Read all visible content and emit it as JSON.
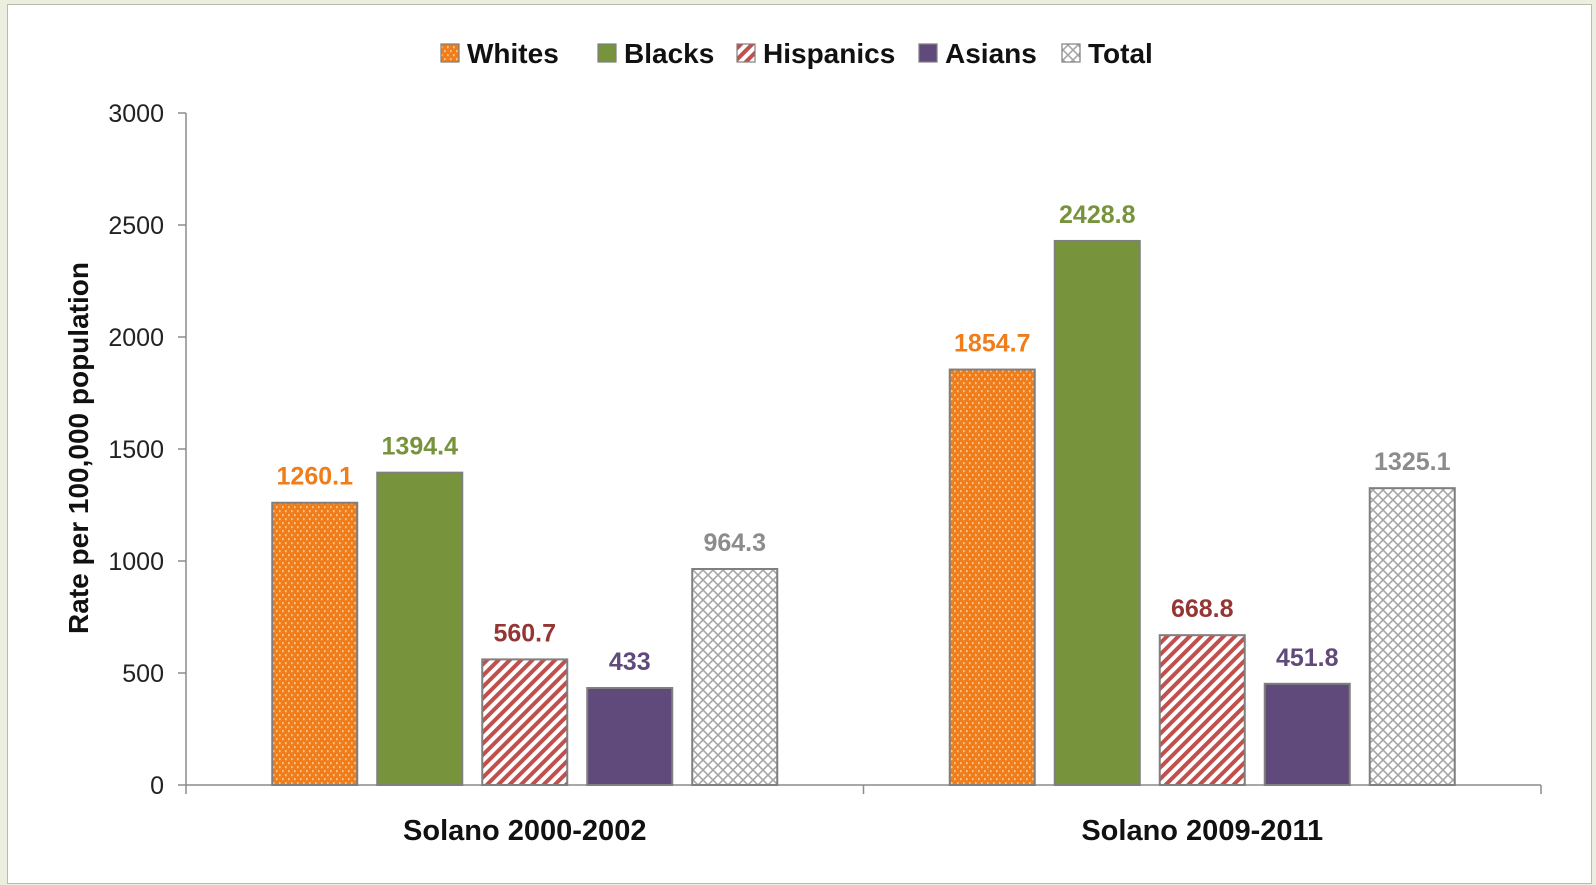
{
  "chart_data": {
    "type": "bar",
    "categories": [
      "Solano 2000-2002",
      "Solano 2009-2011"
    ],
    "series": [
      {
        "name": "Whites",
        "values": [
          1260.1,
          1854.7
        ],
        "color": "#f07d1a",
        "label_color": "#f07d1a",
        "pattern": "dotted-orange"
      },
      {
        "name": "Blacks",
        "values": [
          1394.4,
          2428.8
        ],
        "color": "#77933c",
        "label_color": "#77933c",
        "pattern": "solid"
      },
      {
        "name": "Hispanics",
        "values": [
          560.7,
          668.8
        ],
        "color": "#c0504d",
        "label_color": "#943634",
        "pattern": "diagonal-stripes"
      },
      {
        "name": "Asians",
        "values": [
          433,
          451.8
        ],
        "color": "#604a7b",
        "label_color": "#604a7b",
        "pattern": "solid"
      },
      {
        "name": "Total",
        "values": [
          964.3,
          1325.1
        ],
        "color": "#a6a6a6",
        "label_color": "#8c8c8c",
        "pattern": "crosshatch"
      }
    ],
    "data_labels": [
      [
        "1260.1",
        "1854.7"
      ],
      [
        "1394.4",
        "2428.8"
      ],
      [
        "560.7",
        "668.8"
      ],
      [
        "433",
        "451.8"
      ],
      [
        "964.3",
        "1325.1"
      ]
    ],
    "title": "",
    "xlabel": "",
    "ylabel": "Rate per 100,000 population",
    "ylim": [
      0,
      3000
    ],
    "yticks": [
      "0",
      "500",
      "1000",
      "1500",
      "2000",
      "2500",
      "3000"
    ],
    "grid": false,
    "legend_position": "top"
  }
}
